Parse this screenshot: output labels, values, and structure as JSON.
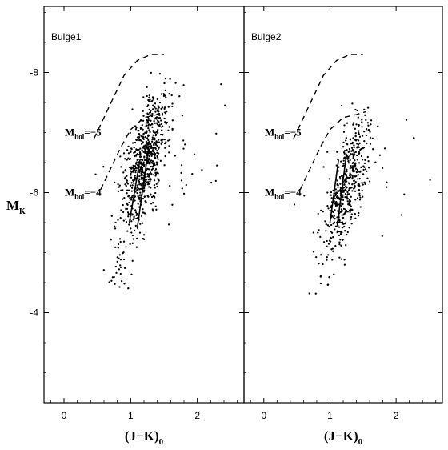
{
  "chart_data": [
    {
      "type": "scatter",
      "panel_label": "Bulge1",
      "xlabel": "(J−K)",
      "xlabel_sub": "0",
      "ylabel": "M",
      "ylabel_sub": "K",
      "xlim": [
        -0.3,
        2.7
      ],
      "ylim": [
        -2.5,
        -9.1
      ],
      "y_inverted": true,
      "x_ticks": [
        0,
        1,
        2
      ],
      "y_ticks": [
        -8,
        -6,
        -4
      ],
      "grid": false,
      "mbol_labels": [
        {
          "text": "M",
          "sub": "bol",
          "value": "=−5",
          "x": 0.0,
          "y": -7.0
        },
        {
          "text": "M",
          "sub": "bol",
          "value": "=−4",
          "x": 0.0,
          "y": -6.0
        }
      ],
      "curves": [
        {
          "name": "Mbol=-5",
          "style": "dashed",
          "points": [
            [
              0.45,
              -6.9
            ],
            [
              0.6,
              -7.25
            ],
            [
              0.75,
              -7.6
            ],
            [
              0.9,
              -7.95
            ],
            [
              1.1,
              -8.2
            ],
            [
              1.3,
              -8.3
            ],
            [
              1.5,
              -8.3
            ]
          ]
        },
        {
          "name": "Mbol=-4",
          "style": "dashed",
          "points": [
            [
              0.55,
              -6.05
            ],
            [
              0.7,
              -6.4
            ],
            [
              0.85,
              -6.75
            ],
            [
              1.0,
              -7.05
            ],
            [
              1.2,
              -7.25
            ],
            [
              1.4,
              -7.3
            ],
            [
              1.55,
              -7.35
            ]
          ]
        }
      ],
      "segments": [
        {
          "x1": 0.98,
          "y1": -5.5,
          "x2": 1.14,
          "y2": -6.55
        },
        {
          "x1": 1.1,
          "y1": -5.42,
          "x2": 1.27,
          "y2": -6.75
        }
      ],
      "cloud": {
        "count": 760,
        "seed": 11,
        "x_center": 1.22,
        "y_center": -6.55,
        "slope": 0.19,
        "x_spread": 0.19,
        "y_low": -4.4,
        "y_high": -7.7
      }
    },
    {
      "type": "scatter",
      "panel_label": "Bulge2",
      "xlabel": "(J−K)",
      "xlabel_sub": "0",
      "xlim": [
        -0.3,
        2.7
      ],
      "ylim": [
        -2.5,
        -9.1
      ],
      "y_inverted": true,
      "x_ticks": [
        0,
        1,
        2
      ],
      "y_ticks": [
        -8,
        -6,
        -4
      ],
      "grid": false,
      "mbol_labels": [
        {
          "text": "M",
          "sub": "bol",
          "value": "=−5",
          "x": 0.0,
          "y": -7.0
        },
        {
          "text": "M",
          "sub": "bol",
          "value": "=−4",
          "x": 0.0,
          "y": -6.0
        }
      ],
      "curves": [
        {
          "name": "Mbol=-5",
          "style": "dashed",
          "points": [
            [
              0.45,
              -6.9
            ],
            [
              0.6,
              -7.25
            ],
            [
              0.75,
              -7.6
            ],
            [
              0.9,
              -7.95
            ],
            [
              1.1,
              -8.2
            ],
            [
              1.3,
              -8.3
            ],
            [
              1.5,
              -8.3
            ]
          ]
        },
        {
          "name": "Mbol=-4",
          "style": "dashed",
          "points": [
            [
              0.55,
              -6.05
            ],
            [
              0.7,
              -6.4
            ],
            [
              0.85,
              -6.75
            ],
            [
              1.0,
              -7.05
            ],
            [
              1.2,
              -7.25
            ],
            [
              1.4,
              -7.3
            ],
            [
              1.55,
              -7.35
            ]
          ]
        }
      ],
      "segments": [
        {
          "x1": 1.0,
          "y1": -5.5,
          "x2": 1.13,
          "y2": -6.55
        },
        {
          "x1": 1.11,
          "y1": -5.45,
          "x2": 1.25,
          "y2": -6.65
        }
      ],
      "cloud": {
        "count": 520,
        "seed": 29,
        "x_center": 1.25,
        "y_center": -6.1,
        "slope": 0.22,
        "x_spread": 0.17,
        "y_low": -4.3,
        "y_high": -7.2
      }
    }
  ]
}
